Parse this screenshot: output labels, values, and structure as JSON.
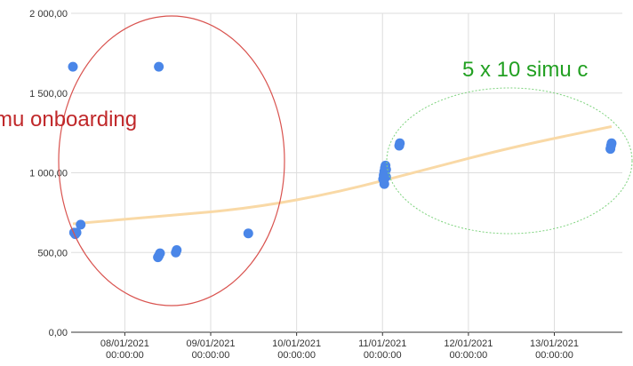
{
  "chart_data": {
    "type": "scatter",
    "title": "",
    "xlabel": "",
    "ylabel": "",
    "ylim": [
      0,
      2000
    ],
    "xlim": [
      "2021-01-07T09:00:00",
      "2021-01-13T19:00:00"
    ],
    "grid": true,
    "legend": "none",
    "y_ticks": [
      "0,00",
      "500,00",
      "1 000,00",
      "1 500,00",
      "2 000,00"
    ],
    "y_tick_values": [
      0,
      500,
      1000,
      1500,
      2000
    ],
    "x_ticks": [
      {
        "date": "08/01/2021",
        "time": "00:00:00",
        "x": "2021-01-08T00:00:00"
      },
      {
        "date": "09/01/2021",
        "time": "00:00:00",
        "x": "2021-01-09T00:00:00"
      },
      {
        "date": "10/01/2021",
        "time": "00:00:00",
        "x": "2021-01-10T00:00:00"
      },
      {
        "date": "11/01/2021",
        "time": "00:00:00",
        "x": "2021-01-11T00:00:00"
      },
      {
        "date": "12/01/2021",
        "time": "00:00:00",
        "x": "2021-01-12T00:00:00"
      },
      {
        "date": "13/01/2021",
        "time": "00:00:00",
        "x": "2021-01-13T00:00:00"
      }
    ],
    "series": [
      {
        "color": "#4a86e8",
        "points": [
          {
            "x": "2021-01-07T09:30:00",
            "y": 1665
          },
          {
            "x": "2021-01-07T09:50:00",
            "y": 625
          },
          {
            "x": "2021-01-07T10:10:00",
            "y": 615
          },
          {
            "x": "2021-01-07T10:30:00",
            "y": 625
          },
          {
            "x": "2021-01-07T11:40:00",
            "y": 675
          },
          {
            "x": "2021-01-08T09:30:00",
            "y": 1665
          },
          {
            "x": "2021-01-08T09:15:00",
            "y": 470
          },
          {
            "x": "2021-01-08T09:30:00",
            "y": 480
          },
          {
            "x": "2021-01-08T09:50:00",
            "y": 495
          },
          {
            "x": "2021-01-08T14:15:00",
            "y": 500
          },
          {
            "x": "2021-01-08T14:30:00",
            "y": 515
          },
          {
            "x": "2021-01-09T10:30:00",
            "y": 620
          },
          {
            "x": "2021-01-11T00:10:00",
            "y": 960
          },
          {
            "x": "2021-01-11T00:20:00",
            "y": 985
          },
          {
            "x": "2021-01-11T00:30:00",
            "y": 1010
          },
          {
            "x": "2021-01-11T00:40:00",
            "y": 1030
          },
          {
            "x": "2021-01-11T00:50:00",
            "y": 1045
          },
          {
            "x": "2021-01-11T01:00:00",
            "y": 1020
          },
          {
            "x": "2021-01-11T00:30:00",
            "y": 930
          },
          {
            "x": "2021-01-11T01:00:00",
            "y": 975
          },
          {
            "x": "2021-01-11T04:40:00",
            "y": 1170
          },
          {
            "x": "2021-01-11T04:50:00",
            "y": 1185
          },
          {
            "x": "2021-01-13T15:40:00",
            "y": 1150
          },
          {
            "x": "2021-01-13T15:50:00",
            "y": 1170
          },
          {
            "x": "2021-01-13T16:00:00",
            "y": 1185
          }
        ]
      }
    ],
    "trendline": {
      "color": "#f9d9a6",
      "points": [
        {
          "x": "2021-01-07T09:30:00",
          "y": 680
        },
        {
          "x": "2021-01-08T12:00:00",
          "y": 730
        },
        {
          "x": "2021-01-09T12:00:00",
          "y": 780
        },
        {
          "x": "2021-01-10T12:00:00",
          "y": 880
        },
        {
          "x": "2021-01-11T12:00:00",
          "y": 1020
        },
        {
          "x": "2021-01-12T12:00:00",
          "y": 1160
        },
        {
          "x": "2021-01-13T16:00:00",
          "y": 1290
        }
      ]
    },
    "annotations": [
      {
        "text": "5 x 10 simu c",
        "color": "#22a022"
      },
      {
        "text": "mu onboarding",
        "color": "#c0282a"
      }
    ]
  }
}
